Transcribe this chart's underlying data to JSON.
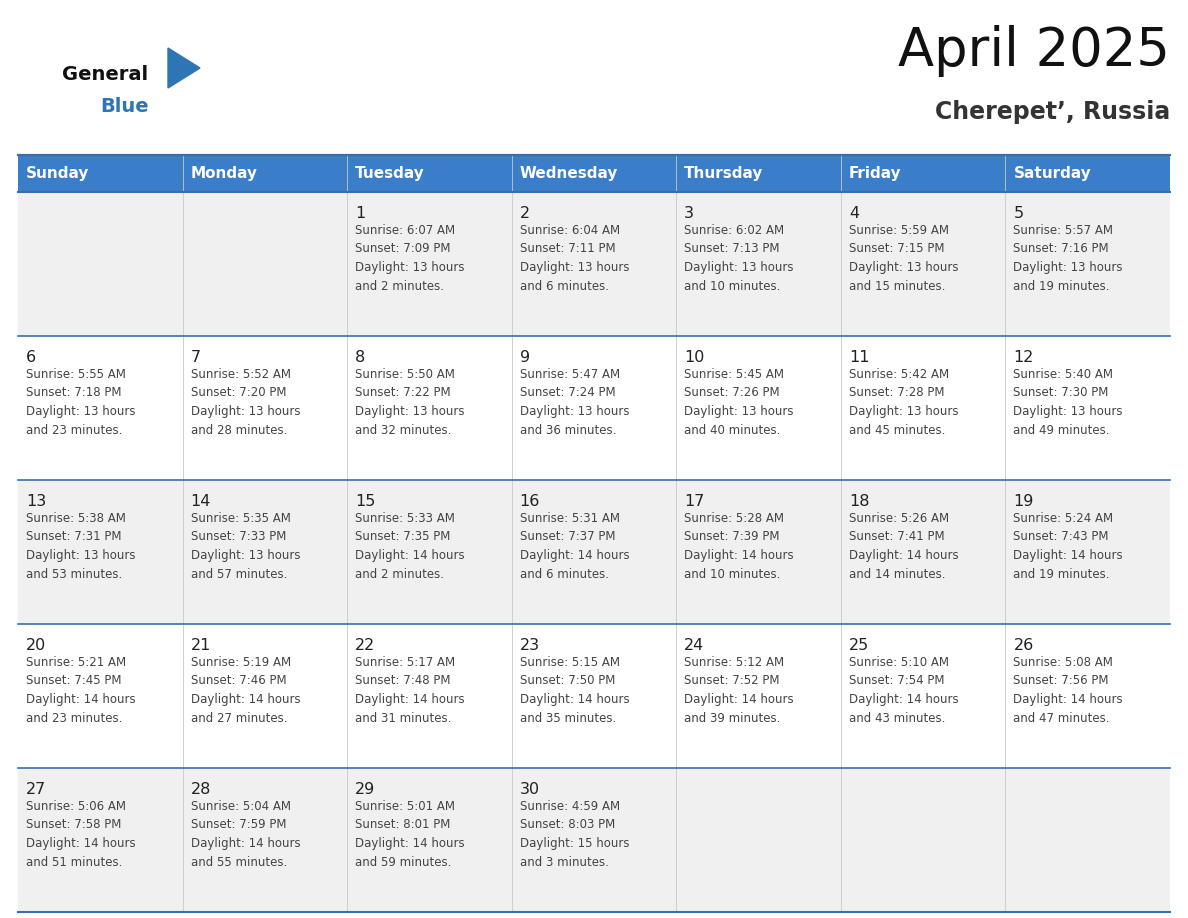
{
  "title": "April 2025",
  "subtitle": "Cherepet’, Russia",
  "days_of_week": [
    "Sunday",
    "Monday",
    "Tuesday",
    "Wednesday",
    "Thursday",
    "Friday",
    "Saturday"
  ],
  "header_bg": "#3A7DC9",
  "header_text": "#FFFFFF",
  "cell_bg_odd": "#F0F0F0",
  "cell_bg_even": "#FFFFFF",
  "row_border": "#3A6EA8",
  "day_num_color": "#222222",
  "text_color": "#444444",
  "title_color": "#111111",
  "subtitle_color": "#333333",
  "logo_general_color": "#111111",
  "logo_blue_color": "#2E75B6",
  "weeks": [
    {
      "days": [
        {
          "date": null,
          "info": null
        },
        {
          "date": null,
          "info": null
        },
        {
          "date": 1,
          "info": "Sunrise: 6:07 AM\nSunset: 7:09 PM\nDaylight: 13 hours\nand 2 minutes."
        },
        {
          "date": 2,
          "info": "Sunrise: 6:04 AM\nSunset: 7:11 PM\nDaylight: 13 hours\nand 6 minutes."
        },
        {
          "date": 3,
          "info": "Sunrise: 6:02 AM\nSunset: 7:13 PM\nDaylight: 13 hours\nand 10 minutes."
        },
        {
          "date": 4,
          "info": "Sunrise: 5:59 AM\nSunset: 7:15 PM\nDaylight: 13 hours\nand 15 minutes."
        },
        {
          "date": 5,
          "info": "Sunrise: 5:57 AM\nSunset: 7:16 PM\nDaylight: 13 hours\nand 19 minutes."
        }
      ]
    },
    {
      "days": [
        {
          "date": 6,
          "info": "Sunrise: 5:55 AM\nSunset: 7:18 PM\nDaylight: 13 hours\nand 23 minutes."
        },
        {
          "date": 7,
          "info": "Sunrise: 5:52 AM\nSunset: 7:20 PM\nDaylight: 13 hours\nand 28 minutes."
        },
        {
          "date": 8,
          "info": "Sunrise: 5:50 AM\nSunset: 7:22 PM\nDaylight: 13 hours\nand 32 minutes."
        },
        {
          "date": 9,
          "info": "Sunrise: 5:47 AM\nSunset: 7:24 PM\nDaylight: 13 hours\nand 36 minutes."
        },
        {
          "date": 10,
          "info": "Sunrise: 5:45 AM\nSunset: 7:26 PM\nDaylight: 13 hours\nand 40 minutes."
        },
        {
          "date": 11,
          "info": "Sunrise: 5:42 AM\nSunset: 7:28 PM\nDaylight: 13 hours\nand 45 minutes."
        },
        {
          "date": 12,
          "info": "Sunrise: 5:40 AM\nSunset: 7:30 PM\nDaylight: 13 hours\nand 49 minutes."
        }
      ]
    },
    {
      "days": [
        {
          "date": 13,
          "info": "Sunrise: 5:38 AM\nSunset: 7:31 PM\nDaylight: 13 hours\nand 53 minutes."
        },
        {
          "date": 14,
          "info": "Sunrise: 5:35 AM\nSunset: 7:33 PM\nDaylight: 13 hours\nand 57 minutes."
        },
        {
          "date": 15,
          "info": "Sunrise: 5:33 AM\nSunset: 7:35 PM\nDaylight: 14 hours\nand 2 minutes."
        },
        {
          "date": 16,
          "info": "Sunrise: 5:31 AM\nSunset: 7:37 PM\nDaylight: 14 hours\nand 6 minutes."
        },
        {
          "date": 17,
          "info": "Sunrise: 5:28 AM\nSunset: 7:39 PM\nDaylight: 14 hours\nand 10 minutes."
        },
        {
          "date": 18,
          "info": "Sunrise: 5:26 AM\nSunset: 7:41 PM\nDaylight: 14 hours\nand 14 minutes."
        },
        {
          "date": 19,
          "info": "Sunrise: 5:24 AM\nSunset: 7:43 PM\nDaylight: 14 hours\nand 19 minutes."
        }
      ]
    },
    {
      "days": [
        {
          "date": 20,
          "info": "Sunrise: 5:21 AM\nSunset: 7:45 PM\nDaylight: 14 hours\nand 23 minutes."
        },
        {
          "date": 21,
          "info": "Sunrise: 5:19 AM\nSunset: 7:46 PM\nDaylight: 14 hours\nand 27 minutes."
        },
        {
          "date": 22,
          "info": "Sunrise: 5:17 AM\nSunset: 7:48 PM\nDaylight: 14 hours\nand 31 minutes."
        },
        {
          "date": 23,
          "info": "Sunrise: 5:15 AM\nSunset: 7:50 PM\nDaylight: 14 hours\nand 35 minutes."
        },
        {
          "date": 24,
          "info": "Sunrise: 5:12 AM\nSunset: 7:52 PM\nDaylight: 14 hours\nand 39 minutes."
        },
        {
          "date": 25,
          "info": "Sunrise: 5:10 AM\nSunset: 7:54 PM\nDaylight: 14 hours\nand 43 minutes."
        },
        {
          "date": 26,
          "info": "Sunrise: 5:08 AM\nSunset: 7:56 PM\nDaylight: 14 hours\nand 47 minutes."
        }
      ]
    },
    {
      "days": [
        {
          "date": 27,
          "info": "Sunrise: 5:06 AM\nSunset: 7:58 PM\nDaylight: 14 hours\nand 51 minutes."
        },
        {
          "date": 28,
          "info": "Sunrise: 5:04 AM\nSunset: 7:59 PM\nDaylight: 14 hours\nand 55 minutes."
        },
        {
          "date": 29,
          "info": "Sunrise: 5:01 AM\nSunset: 8:01 PM\nDaylight: 14 hours\nand 59 minutes."
        },
        {
          "date": 30,
          "info": "Sunrise: 4:59 AM\nSunset: 8:03 PM\nDaylight: 15 hours\nand 3 minutes."
        },
        {
          "date": null,
          "info": null
        },
        {
          "date": null,
          "info": null
        },
        {
          "date": null,
          "info": null
        }
      ]
    }
  ]
}
